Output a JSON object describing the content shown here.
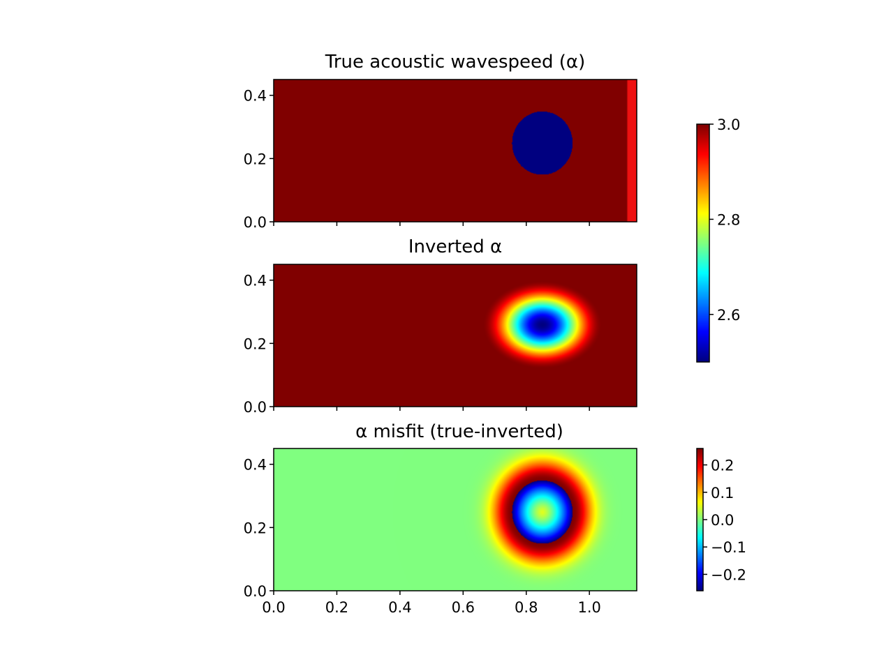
{
  "chart_data": [
    {
      "type": "heatmap",
      "title": "True acoustic wavespeed (α)",
      "xlim": [
        0.0,
        1.15
      ],
      "ylim": [
        0.0,
        0.45
      ],
      "x_ticks": [
        0.0,
        0.2,
        0.4,
        0.6,
        0.8,
        1.0
      ],
      "x_tick_labels_shown": false,
      "y_ticks": [
        "0.0",
        "0.2",
        "0.4"
      ],
      "colormap": "jet",
      "color_range": [
        2.5,
        3.0
      ],
      "background_value": 3.0,
      "anomaly": {
        "shape": "disk",
        "center": [
          0.85,
          0.25
        ],
        "radius": 0.1,
        "value": 2.5
      },
      "right_edge_strip": {
        "x_range": [
          1.12,
          1.15
        ],
        "color": "#ee1111"
      }
    },
    {
      "type": "heatmap",
      "title": "Inverted α",
      "xlim": [
        0.0,
        1.15
      ],
      "ylim": [
        0.0,
        0.45
      ],
      "x_ticks": [
        0.0,
        0.2,
        0.4,
        0.6,
        0.8,
        1.0
      ],
      "x_tick_labels_shown": false,
      "y_ticks": [
        "0.0",
        "0.2",
        "0.4"
      ],
      "colormap": "jet",
      "color_range": [
        2.5,
        3.0
      ],
      "background_value": 3.0,
      "anomaly": {
        "shape": "smooth-ellipse",
        "center": [
          0.85,
          0.26
        ],
        "semi_axes": [
          0.19,
          0.14
        ],
        "min_value": 2.5
      }
    },
    {
      "type": "heatmap",
      "title": "α misfit (true-inverted)",
      "xlim": [
        0.0,
        1.15
      ],
      "ylim": [
        0.0,
        0.45
      ],
      "x_ticks": [
        "0.0",
        "0.2",
        "0.4",
        "0.6",
        "0.8",
        "1.0"
      ],
      "y_ticks": [
        "0.0",
        "0.2",
        "0.4"
      ],
      "colormap": "jet",
      "color_range": [
        -0.26,
        0.26
      ],
      "background_value": 0.0,
      "misfit_ring": {
        "center": [
          0.85,
          0.25
        ],
        "inner_radius": 0.1,
        "peak_value": 0.26,
        "core_value": 0.05,
        "min_value": -0.26
      }
    }
  ],
  "colorbars": [
    {
      "for": "wavespeed",
      "ticks": [
        "3.0",
        "2.8",
        "2.6"
      ],
      "tick_values": [
        3.0,
        2.8,
        2.6
      ],
      "range": [
        2.5,
        3.0
      ]
    },
    {
      "for": "misfit",
      "ticks": [
        "0.2",
        "0.1",
        "0.0",
        "−0.1",
        "−0.2"
      ],
      "tick_values": [
        0.2,
        0.1,
        0.0,
        -0.1,
        -0.2
      ],
      "range": [
        -0.26,
        0.26
      ]
    }
  ],
  "colors": {
    "frame": "#000000",
    "background": "#ffffff"
  }
}
